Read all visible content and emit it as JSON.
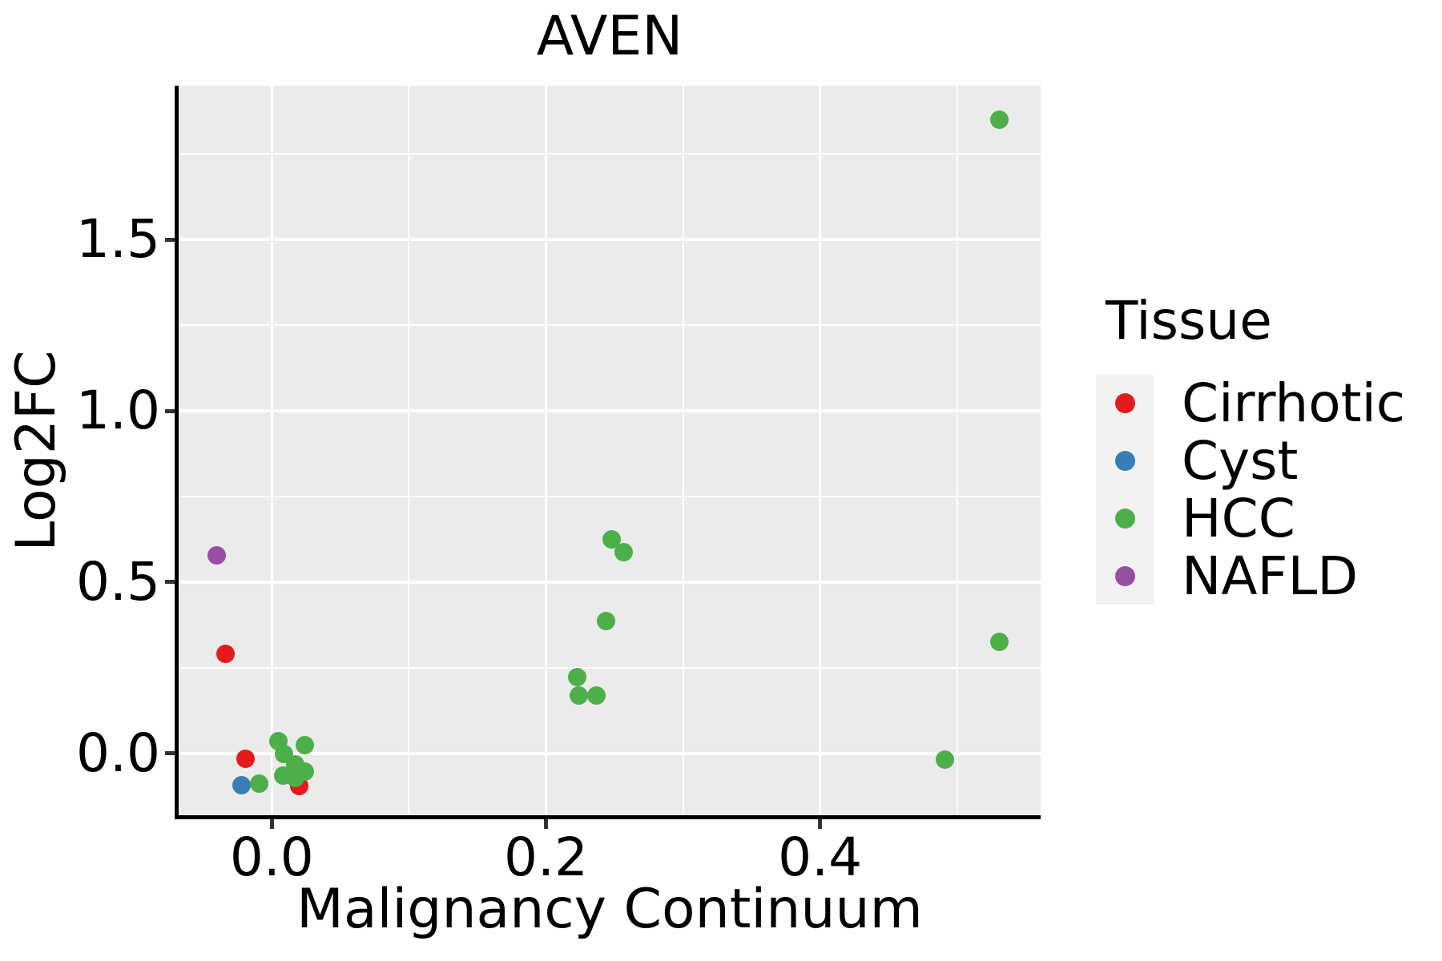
{
  "chart_data": {
    "type": "scatter",
    "title": "AVEN",
    "xlabel": "Malignancy Continuum",
    "ylabel": "Log2FC",
    "legend_title": "Tissue",
    "legend_position": "right",
    "grid": true,
    "panel_background": "#EBEBEB",
    "gridline_color": "#FFFFFF",
    "xlim": [
      -0.068,
      0.561
    ],
    "ylim": [
      -0.185,
      1.949
    ],
    "x_ticks": [
      0.0,
      0.2,
      0.4
    ],
    "x_tick_labels": [
      "0.0",
      "0.2",
      "0.4"
    ],
    "y_ticks": [
      0.0,
      0.5,
      1.0,
      1.5
    ],
    "y_tick_labels": [
      "0.0",
      "0.5",
      "1.0",
      "1.5"
    ],
    "series": [
      {
        "name": "Cirrhotic",
        "color": "#E41A1C",
        "points": [
          [
            -0.034,
            0.29
          ],
          [
            -0.019,
            -0.016
          ],
          [
            0.02,
            -0.095
          ]
        ]
      },
      {
        "name": "Cyst",
        "color": "#377EB8",
        "points": [
          [
            -0.022,
            -0.093
          ]
        ]
      },
      {
        "name": "HCC",
        "color": "#4DAF4A",
        "points": [
          [
            -0.009,
            -0.088
          ],
          [
            0.005,
            0.037
          ],
          [
            0.024,
            0.024
          ],
          [
            0.009,
            -0.002
          ],
          [
            0.017,
            -0.033
          ],
          [
            0.024,
            -0.052
          ],
          [
            0.008,
            -0.064
          ],
          [
            0.017,
            -0.072
          ],
          [
            0.223,
            0.224
          ],
          [
            0.224,
            0.17
          ],
          [
            0.237,
            0.17
          ],
          [
            0.244,
            0.386
          ],
          [
            0.248,
            0.626
          ],
          [
            0.257,
            0.588
          ],
          [
            0.491,
            -0.017
          ],
          [
            0.531,
            0.325
          ],
          [
            0.531,
            1.85
          ]
        ]
      },
      {
        "name": "NAFLD",
        "color": "#984EA3",
        "points": [
          [
            -0.04,
            0.577
          ]
        ]
      }
    ]
  }
}
